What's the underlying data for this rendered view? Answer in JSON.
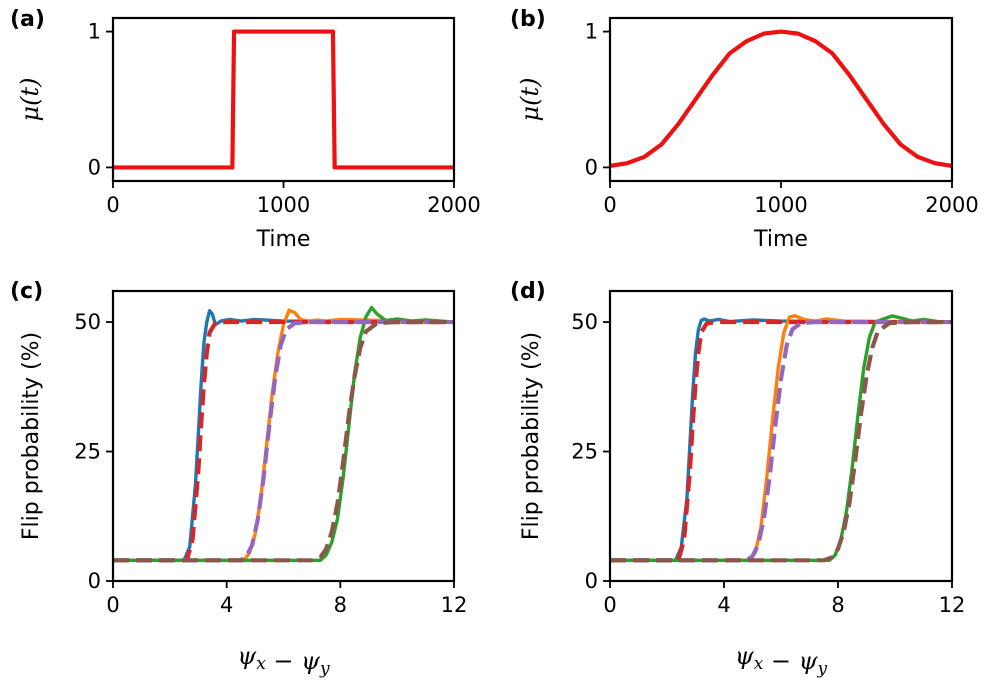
{
  "colors": {
    "red": "#ee1111",
    "blue": "#1f77b4",
    "orange": "#ff7f0e",
    "green": "#2ca02c",
    "dashed_red": "#d62728",
    "purple": "#9467bd",
    "brown": "#8c564b"
  },
  "chart_data": [
    {
      "panel": "(a)",
      "type": "line",
      "xlabel": "Time",
      "ylabel": "μ(t)",
      "xlim": [
        0,
        2000
      ],
      "ylim": [
        -0.1,
        1.1
      ],
      "xticks": [
        0,
        1000,
        2000
      ],
      "yticks": [
        0,
        1
      ],
      "grid": false,
      "series": [
        {
          "color": "red",
          "style": "solid",
          "x": [
            0,
            700,
            710,
            1290,
            1300,
            2000
          ],
          "y": [
            0,
            0,
            1,
            1,
            0,
            0
          ]
        }
      ]
    },
    {
      "panel": "(b)",
      "type": "line",
      "xlabel": "Time",
      "ylabel": "μ(t)",
      "xlim": [
        0,
        2000
      ],
      "ylim": [
        -0.1,
        1.1
      ],
      "xticks": [
        0,
        1000,
        2000
      ],
      "yticks": [
        0,
        1
      ],
      "grid": false,
      "series": [
        {
          "color": "red",
          "style": "solid",
          "x": [
            0,
            100,
            200,
            300,
            400,
            500,
            600,
            700,
            800,
            900,
            1000,
            1100,
            1200,
            1300,
            1400,
            1500,
            1600,
            1700,
            1800,
            1900,
            2000
          ],
          "y": [
            0.011,
            0.031,
            0.077,
            0.168,
            0.32,
            0.5,
            0.68,
            0.84,
            0.93,
            0.985,
            1.0,
            0.985,
            0.93,
            0.84,
            0.68,
            0.5,
            0.32,
            0.168,
            0.077,
            0.031,
            0.011
          ]
        }
      ]
    },
    {
      "panel": "(c)",
      "type": "line",
      "xlabel": "ψx − ψy",
      "ylabel": "Flip probability (%)",
      "xlim": [
        0,
        12
      ],
      "ylim": [
        0,
        56
      ],
      "xticks": [
        0,
        4,
        8,
        12
      ],
      "yticks": [
        0,
        25,
        50
      ],
      "grid": false,
      "series": [
        {
          "color": "blue",
          "style": "solid",
          "x": [
            0,
            2.5,
            2.7,
            2.9,
            3.0,
            3.1,
            3.2,
            3.3,
            3.4,
            3.5,
            3.6,
            3.8,
            4.1,
            4.5,
            5.0,
            6.0,
            12
          ],
          "y": [
            4,
            4,
            6.6,
            18.5,
            28,
            38,
            46,
            50,
            52.2,
            51.5,
            49.5,
            50.2,
            50.5,
            50.2,
            50.5,
            50.2,
            50
          ]
        },
        {
          "color": "orange",
          "style": "solid",
          "x": [
            0,
            4.6,
            4.8,
            5.0,
            5.2,
            5.4,
            5.6,
            5.8,
            6.0,
            6.2,
            6.4,
            6.6,
            6.9,
            7.2,
            7.5,
            8.0,
            12
          ],
          "y": [
            4,
            4,
            5.4,
            9,
            16,
            26,
            36,
            44,
            49.5,
            52.3,
            51.8,
            50.5,
            50.2,
            50.4,
            50.2,
            50.5,
            50
          ]
        },
        {
          "color": "green",
          "style": "solid",
          "x": [
            0,
            7.3,
            7.5,
            7.7,
            7.9,
            8.1,
            8.3,
            8.5,
            8.7,
            8.9,
            9.1,
            9.3,
            9.6,
            10.0,
            10.5,
            11.0,
            12
          ],
          "y": [
            4,
            4,
            5,
            7.5,
            12,
            20,
            30,
            40,
            47,
            51,
            52.8,
            51.5,
            50.3,
            50.6,
            50.2,
            50.4,
            50
          ]
        },
        {
          "color": "dashed_red",
          "style": "dashed",
          "x": [
            0,
            2.6,
            2.8,
            3.0,
            3.1,
            3.2,
            3.3,
            3.4,
            3.6,
            4.0,
            12
          ],
          "y": [
            4,
            4,
            8,
            21,
            30,
            38,
            44,
            48,
            49.8,
            50,
            50
          ]
        },
        {
          "color": "purple",
          "style": "dashed",
          "x": [
            0,
            4.5,
            4.7,
            4.9,
            5.1,
            5.3,
            5.5,
            5.7,
            5.9,
            6.1,
            6.4,
            7.0,
            12
          ],
          "y": [
            4,
            4,
            4.8,
            7,
            12,
            20,
            30,
            39,
            45.5,
            48.6,
            49.8,
            50,
            50
          ]
        },
        {
          "color": "brown",
          "style": "dashed",
          "x": [
            0,
            7.0,
            7.3,
            7.5,
            7.7,
            7.9,
            8.1,
            8.3,
            8.5,
            8.7,
            8.9,
            9.3,
            10.0,
            12
          ],
          "y": [
            4,
            4,
            4.6,
            6.2,
            9.5,
            15,
            23,
            32,
            39.5,
            45,
            48.2,
            49.8,
            50,
            50
          ]
        }
      ]
    },
    {
      "panel": "(d)",
      "type": "line",
      "xlabel": "ψx − ψy",
      "ylabel": "Flip probability (%)",
      "xlim": [
        0,
        12
      ],
      "ylim": [
        0,
        56
      ],
      "xticks": [
        0,
        4,
        8,
        12
      ],
      "yticks": [
        0,
        25,
        50
      ],
      "grid": false,
      "series": [
        {
          "color": "blue",
          "style": "solid",
          "x": [
            0,
            2.3,
            2.5,
            2.7,
            2.8,
            2.9,
            3.0,
            3.1,
            3.2,
            3.3,
            3.5,
            3.8,
            4.2,
            5.0,
            6.0,
            12
          ],
          "y": [
            4,
            4,
            6.5,
            16,
            26,
            36,
            44,
            48.5,
            50.3,
            50.6,
            50.2,
            50.5,
            50.1,
            50.4,
            50.2,
            50
          ]
        },
        {
          "color": "orange",
          "style": "solid",
          "x": [
            0,
            4.9,
            5.1,
            5.3,
            5.5,
            5.7,
            5.9,
            6.1,
            6.3,
            6.5,
            6.8,
            7.2,
            7.6,
            8.2,
            12
          ],
          "y": [
            4,
            4,
            5.5,
            10.5,
            20,
            31,
            41,
            48,
            51,
            51.2,
            50.5,
            50.2,
            50.6,
            50.2,
            50
          ]
        },
        {
          "color": "green",
          "style": "solid",
          "x": [
            0,
            7.7,
            7.9,
            8.1,
            8.3,
            8.5,
            8.7,
            8.9,
            9.1,
            9.3,
            9.6,
            9.9,
            10.2,
            10.6,
            11.0,
            11.5,
            12
          ],
          "y": [
            4,
            4,
            5,
            8,
            13.5,
            22,
            32,
            41,
            47,
            50,
            50.6,
            51.2,
            50.8,
            50.2,
            50.5,
            50.1,
            50
          ]
        },
        {
          "color": "dashed_red",
          "style": "dashed",
          "x": [
            0,
            2.4,
            2.6,
            2.8,
            2.9,
            3.0,
            3.1,
            3.2,
            3.4,
            3.8,
            12
          ],
          "y": [
            4,
            4,
            8,
            21,
            30,
            38,
            44,
            48,
            49.8,
            50,
            50
          ]
        },
        {
          "color": "purple",
          "style": "dashed",
          "x": [
            0,
            4.8,
            5.0,
            5.2,
            5.4,
            5.6,
            5.8,
            6.0,
            6.2,
            6.4,
            6.7,
            7.2,
            12
          ],
          "y": [
            4,
            4,
            4.8,
            7,
            12,
            20,
            30,
            39,
            45.5,
            48.6,
            49.8,
            50,
            50
          ]
        },
        {
          "color": "brown",
          "style": "dashed",
          "x": [
            0,
            7.5,
            7.8,
            8.0,
            8.2,
            8.4,
            8.6,
            8.8,
            9.0,
            9.2,
            9.4,
            9.8,
            10.5,
            12
          ],
          "y": [
            4,
            4,
            4.6,
            6.2,
            9.5,
            15,
            23,
            32,
            39.5,
            45,
            48.2,
            49.8,
            50,
            50
          ]
        }
      ]
    }
  ]
}
